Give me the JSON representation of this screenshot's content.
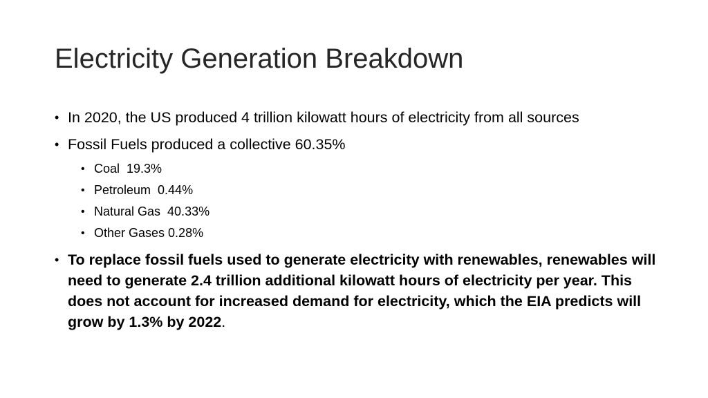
{
  "slide": {
    "title": "Electricity Generation Breakdown",
    "bullets": [
      {
        "text": "In 2020, the US produced 4 trillion kilowatt hours of electricity from all sources"
      },
      {
        "text": "Fossil Fuels produced a collective 60.35%",
        "sub_items": [
          "Coal  19.3%",
          "Petroleum  0.44%",
          "Natural Gas  40.33%",
          "Other Gases 0.28%"
        ]
      },
      {
        "bold_text": "To replace fossil fuels used to generate electricity with renewables, renewables will need to generate 2.4 trillion additional kilowatt hours of electricity per year. This does not account for increased demand for electricity, which the EIA predicts will grow by 1.3% by 2022",
        "tail_text": "."
      }
    ],
    "bullet_glyph": "•"
  }
}
